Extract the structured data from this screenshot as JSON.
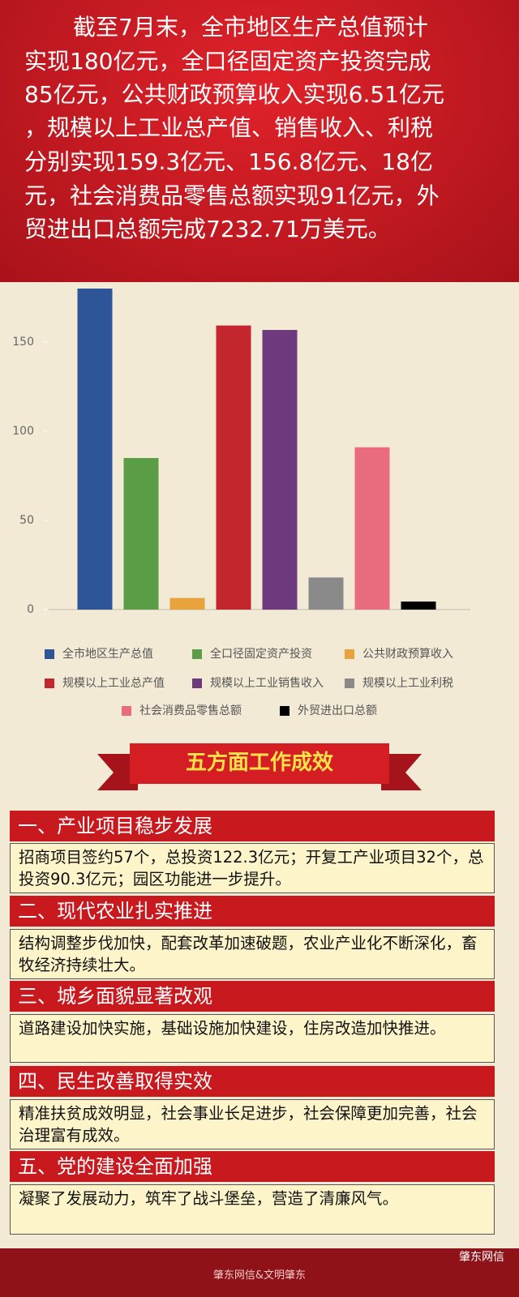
{
  "header": {
    "lines": [
      "截至7月末，全市地区生产总值预计",
      "实现180亿元，全口径固定资产投资完成",
      "85亿元，公共财政预算收入实现6.51亿元",
      "，规模以上工业总产值、销售收入、利税",
      "分别实现159.3亿元、156.8亿元、18亿",
      "元，社会消费品零售总额实现91亿元，外",
      "贸进出口总额完成7232.71万美元。"
    ]
  },
  "chart_data": {
    "type": "bar",
    "categories": [
      "全市地区生产总值",
      "全口径固定资产投资",
      "公共财政预算收入",
      "规模以上工业总产值",
      "规模以上工业销售收入",
      "规模以上工业利税",
      "社会消费品零售总额",
      "外贸进出口总额"
    ],
    "values": [
      180,
      85,
      6.51,
      159.3,
      156.8,
      18,
      91,
      4.5
    ],
    "colors": [
      "#2e5597",
      "#5b9c47",
      "#e8a33c",
      "#c4262e",
      "#6e3a7e",
      "#8a8a8a",
      "#e86c7d",
      "#000000"
    ],
    "ylim": [
      0,
      180
    ],
    "yticks": [
      0,
      50,
      100,
      150
    ]
  },
  "banner": {
    "title": "五方面工作成效"
  },
  "sections": [
    {
      "title": "一、产业项目稳步发展",
      "body": "招商项目签约57个，总投资122.3亿元；开复工产业项目32个，总投资90.3亿元；园区功能进一步提升。"
    },
    {
      "title": "二、现代农业扎实推进",
      "body": "结构调整步伐加快，配套改革加速破题，农业产业化不断深化，畜牧经济持续壮大。"
    },
    {
      "title": "三、城乡面貌显著改观",
      "body": "道路建设加快实施，基础设施加快建设，住房改造加快推进。"
    },
    {
      "title": "四、民生改善取得实效",
      "body": "精准扶贫成效明显，社会事业长足进步，社会保障更加完善，社会治理富有成效。"
    },
    {
      "title": "五、党的建设全面加强",
      "body": "凝聚了发展动力，筑牢了战斗堡垒，营造了清廉风气。"
    }
  ],
  "footer": {
    "credit": "肇东网信&文明肇东",
    "watermark": "肇东网信"
  }
}
